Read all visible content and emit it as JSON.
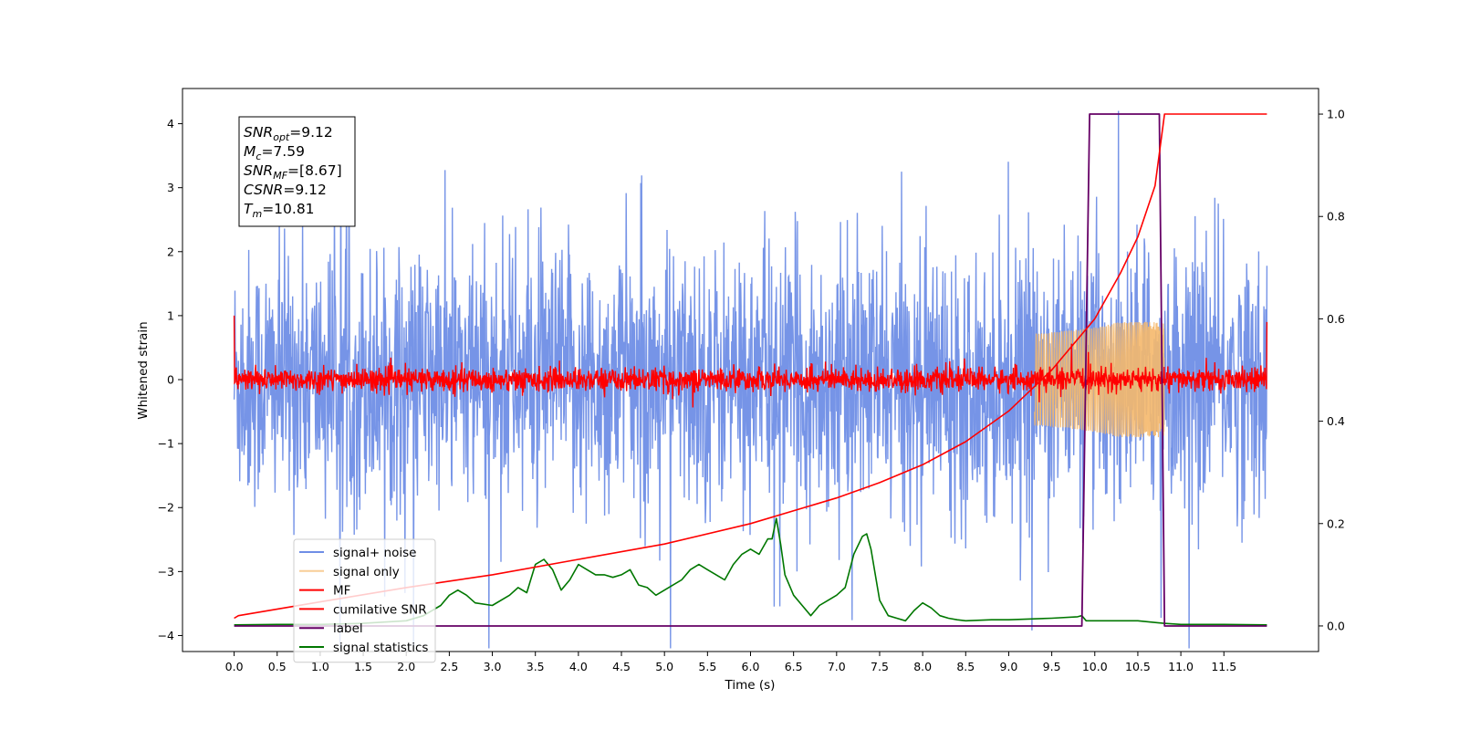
{
  "chart_data": {
    "type": "line",
    "title": "",
    "xlabel": "Time (s)",
    "ylabel": "Whitened strain",
    "ylabel_right": "",
    "xlim": [
      -0.6,
      12.6
    ],
    "ylim": [
      -4.25,
      4.55
    ],
    "ylim_right": [
      -0.05,
      1.05
    ],
    "x_ticks": [
      "0.0",
      "0.5",
      "1.0",
      "1.5",
      "2.0",
      "2.5",
      "3.0",
      "3.5",
      "4.0",
      "4.5",
      "5.0",
      "5.5",
      "6.0",
      "6.5",
      "7.0",
      "7.5",
      "8.0",
      "8.5",
      "9.0",
      "9.5",
      "10.0",
      "10.5",
      "11.0",
      "11.5"
    ],
    "y_ticks": [
      "4",
      "3",
      "2",
      "1",
      "0",
      "−1",
      "−2",
      "−3",
      "−4"
    ],
    "y_ticks_right": [
      "1.0",
      "0.8",
      "0.6",
      "0.4",
      "0.2",
      "0.0"
    ],
    "grid": false,
    "legend_position": "lower-left",
    "annotation": {
      "lines": [
        {
          "base": "SNR",
          "sub": "opt",
          "value": "=9.12"
        },
        {
          "base": "M",
          "sub": "c",
          "value": "=7.59"
        },
        {
          "base": "SNR",
          "sub": "MF",
          "value": "=[8.67]"
        },
        {
          "base": "CSNR",
          "sub": "",
          "value": "=9.12"
        },
        {
          "base": "T",
          "sub": "m",
          "value": "=10.81"
        }
      ]
    },
    "series": [
      {
        "name": "signal+ noise",
        "color": "#6f8ee6",
        "axis": "left",
        "description": "whitened noise band, approx ±2.5 with spikes up to ±4.2",
        "envelope": 2.5
      },
      {
        "name": "signal only",
        "color": "#f5b86b",
        "axis": "left",
        "description": "chirp growing to amplitude ~0.9 ending at t=10.81"
      },
      {
        "name": "MF",
        "color": "#ff0000",
        "axis": "left",
        "description": "matched filter output oscillating near 0"
      },
      {
        "name": "cumilative SNR",
        "color": "#ff0000",
        "axis": "right",
        "x": [
          0.0,
          0.05,
          1.0,
          2.0,
          3.0,
          4.0,
          5.0,
          6.0,
          7.0,
          7.5,
          8.0,
          8.5,
          9.0,
          9.5,
          10.0,
          10.3,
          10.5,
          10.7,
          10.81,
          12.0
        ],
        "y": [
          0.015,
          0.02,
          0.047,
          0.075,
          0.1,
          0.13,
          0.16,
          0.2,
          0.25,
          0.28,
          0.315,
          0.36,
          0.42,
          0.5,
          0.6,
          0.69,
          0.76,
          0.86,
          1.0,
          1.0
        ]
      },
      {
        "name": "label",
        "color": "#660066",
        "axis": "right",
        "x": [
          0.0,
          9.85,
          9.94,
          10.75,
          10.81,
          12.0
        ],
        "y": [
          0.0,
          0.0,
          1.0,
          1.0,
          0.0,
          0.0
        ]
      },
      {
        "name": "signal statistics",
        "color": "#007700",
        "axis": "right",
        "x": [
          0.0,
          0.5,
          1.0,
          1.5,
          2.0,
          2.2,
          2.4,
          2.5,
          2.6,
          2.7,
          2.8,
          3.0,
          3.2,
          3.3,
          3.4,
          3.5,
          3.6,
          3.7,
          3.8,
          3.9,
          4.0,
          4.1,
          4.2,
          4.3,
          4.4,
          4.5,
          4.6,
          4.7,
          4.8,
          4.9,
          5.0,
          5.1,
          5.2,
          5.3,
          5.4,
          5.5,
          5.6,
          5.7,
          5.8,
          5.9,
          6.0,
          6.1,
          6.2,
          6.25,
          6.3,
          6.35,
          6.4,
          6.5,
          6.6,
          6.7,
          6.8,
          6.9,
          7.0,
          7.1,
          7.2,
          7.3,
          7.35,
          7.4,
          7.5,
          7.6,
          7.7,
          7.8,
          7.9,
          8.0,
          8.1,
          8.2,
          8.3,
          8.4,
          8.5,
          8.8,
          9.0,
          9.5,
          9.8,
          9.85,
          9.9,
          10.0,
          10.5,
          10.8,
          11.0,
          11.5,
          12.0
        ],
        "y": [
          0.002,
          0.003,
          0.003,
          0.005,
          0.01,
          0.02,
          0.04,
          0.06,
          0.07,
          0.06,
          0.045,
          0.04,
          0.06,
          0.075,
          0.065,
          0.12,
          0.13,
          0.11,
          0.07,
          0.09,
          0.12,
          0.11,
          0.1,
          0.1,
          0.095,
          0.1,
          0.11,
          0.08,
          0.075,
          0.06,
          0.07,
          0.08,
          0.09,
          0.11,
          0.12,
          0.11,
          0.1,
          0.09,
          0.12,
          0.14,
          0.15,
          0.14,
          0.17,
          0.17,
          0.21,
          0.16,
          0.1,
          0.06,
          0.04,
          0.02,
          0.04,
          0.05,
          0.06,
          0.075,
          0.14,
          0.175,
          0.18,
          0.15,
          0.05,
          0.02,
          0.015,
          0.01,
          0.03,
          0.045,
          0.035,
          0.02,
          0.015,
          0.012,
          0.01,
          0.012,
          0.012,
          0.015,
          0.018,
          0.02,
          0.01,
          0.01,
          0.01,
          0.005,
          0.003,
          0.003,
          0.002
        ]
      }
    ]
  }
}
